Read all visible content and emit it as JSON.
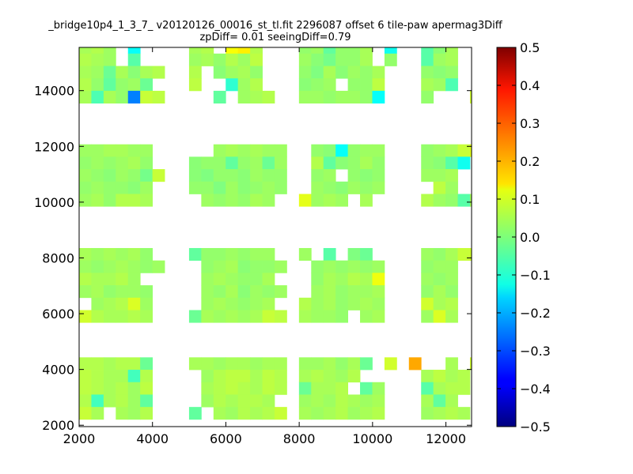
{
  "chart_data": {
    "type": "heatmap",
    "title_line1": "_bridge10p4_1_3_7_ v20120126_00016_st_tl.fit 2296087 offset 6 tile-paw apermag3Diff",
    "title_line2": "zpDiff= 0.01 seeingDiff=0.79",
    "xlim": [
      2000,
      12700
    ],
    "ylim": [
      1950,
      15550
    ],
    "x_ticks": [
      2000,
      4000,
      6000,
      8000,
      10000,
      12000
    ],
    "y_ticks": [
      2000,
      4000,
      6000,
      8000,
      10000,
      12000,
      14000
    ],
    "x_tick_labels": [
      "2000",
      "4000",
      "6000",
      "8000",
      "10000",
      "12000"
    ],
    "y_tick_labels": [
      "2000",
      "4000",
      "6000",
      "8000",
      "10000",
      "12000",
      "14000"
    ],
    "colorbar": {
      "colormap": "jet",
      "vmin": -0.5,
      "vmax": 0.5,
      "ticks": [
        -0.5,
        -0.4,
        -0.3,
        -0.2,
        -0.1,
        0.0,
        0.1,
        0.2,
        0.3,
        0.4,
        0.5
      ],
      "tick_labels": [
        "−0.5",
        "−0.4",
        "−0.3",
        "−0.2",
        "−0.1",
        "0.0",
        "0.1",
        "0.2",
        "0.3",
        "0.4",
        "0.5"
      ]
    },
    "grid": false,
    "cell_size": [
      333,
      444
    ],
    "rows": [
      {
        "y": 15330,
        "x0": 2000,
        "v": [
          0.04,
          0.05,
          0.03,
          null,
          -0.12,
          null,
          null,
          null,
          null,
          0.04,
          0.05,
          null,
          0.12,
          0.14,
          0.05,
          null,
          null,
          null,
          0.02,
          0.03,
          -0.03,
          0.02,
          0.02,
          0.04,
          null,
          -0.11,
          null,
          null,
          -0.04,
          0.01,
          0.04,
          null,
          null
        ]
      },
      {
        "y": 14885,
        "x0": 2000,
        "v": [
          0.05,
          0.04,
          0.03,
          null,
          -0.04,
          null,
          null,
          null,
          null,
          0.03,
          0.04,
          0.02,
          0.05,
          0.03,
          0.06,
          null,
          null,
          null,
          0.03,
          0.01,
          -0.01,
          0.02,
          0.02,
          0.04,
          null,
          0.02,
          null,
          null,
          -0.04,
          0.03,
          0.04,
          null,
          null
        ]
      },
      {
        "y": 14440,
        "x0": 2000,
        "v": [
          0.04,
          0.03,
          -0.02,
          0.04,
          0.01,
          0.04,
          0.05,
          null,
          null,
          0.05,
          null,
          0.01,
          0.03,
          0.04,
          0.02,
          null,
          null,
          null,
          0.02,
          0.0,
          0.04,
          0.01,
          0.03,
          0.02,
          0.04,
          null,
          null,
          null,
          0.02,
          0.01,
          0.02,
          null,
          null
        ]
      },
      {
        "y": 13995,
        "x0": 2000,
        "v": [
          0.05,
          0.02,
          -0.03,
          0.02,
          0.03,
          -0.02,
          null,
          null,
          null,
          0.06,
          null,
          null,
          -0.08,
          0.03,
          0.05,
          null,
          null,
          null,
          0.01,
          0.02,
          0.03,
          null,
          0.02,
          0.02,
          0.06,
          null,
          null,
          null,
          0.04,
          0.03,
          -0.05,
          null,
          null
        ]
      },
      {
        "y": 13550,
        "x0": 2000,
        "v": [
          0.04,
          -0.05,
          0.04,
          0.02,
          -0.25,
          0.07,
          0.06,
          null,
          null,
          null,
          null,
          -0.03,
          null,
          0.03,
          0.04,
          0.05,
          null,
          null,
          0.03,
          0.03,
          0.02,
          0.03,
          0.03,
          0.02,
          -0.12,
          null,
          null,
          null,
          0.02,
          null,
          null,
          null,
          0.08
        ]
      },
      {
        "y": 11630,
        "x0": 2000,
        "v": [
          0.03,
          0.03,
          0.04,
          0.04,
          0.03,
          0.03,
          null,
          null,
          null,
          null,
          null,
          0.03,
          0.04,
          0.03,
          0.04,
          0.03,
          0.03,
          null,
          null,
          0.02,
          0.01,
          -0.12,
          0.02,
          0.03,
          0.03,
          null,
          null,
          null,
          0.02,
          0.03,
          0.04,
          0.07,
          0.1
        ]
      },
      {
        "y": 11185,
        "x0": 2000,
        "v": [
          0.02,
          0.03,
          0.02,
          0.03,
          0.04,
          0.02,
          null,
          null,
          null,
          0.01,
          0.02,
          0.02,
          -0.03,
          0.02,
          0.03,
          -0.02,
          0.03,
          null,
          null,
          0.05,
          -0.03,
          0.01,
          0.02,
          0.04,
          0.02,
          null,
          null,
          null,
          0.02,
          0.01,
          -0.04,
          -0.11,
          null
        ]
      },
      {
        "y": 10740,
        "x0": 2000,
        "v": [
          0.03,
          0.02,
          0.01,
          0.03,
          0.02,
          -0.01,
          0.07,
          null,
          null,
          0.01,
          0.0,
          0.02,
          0.02,
          0.01,
          0.03,
          0.02,
          0.02,
          null,
          null,
          0.02,
          0.03,
          null,
          0.02,
          0.01,
          0.02,
          null,
          null,
          null,
          0.03,
          0.03,
          0.04,
          null,
          null
        ]
      },
      {
        "y": 10295,
        "x0": 2000,
        "v": [
          0.02,
          0.03,
          0.02,
          0.02,
          0.01,
          0.03,
          null,
          null,
          null,
          0.02,
          0.02,
          0.0,
          0.03,
          0.01,
          0.02,
          0.03,
          0.02,
          null,
          null,
          0.03,
          0.02,
          0.01,
          0.03,
          0.02,
          0.03,
          null,
          null,
          null,
          null,
          0.06,
          0.03,
          null,
          null
        ]
      },
      {
        "y": 9850,
        "x0": 2000,
        "v": [
          0.03,
          0.04,
          0.02,
          0.05,
          0.05,
          0.04,
          null,
          null,
          null,
          null,
          0.03,
          0.02,
          0.03,
          0.02,
          0.04,
          0.03,
          null,
          null,
          0.1,
          0.03,
          0.04,
          0.03,
          null,
          0.04,
          null,
          null,
          null,
          null,
          0.05,
          0.03,
          0.02,
          -0.04,
          0.04
        ]
      },
      {
        "y": 7910,
        "x0": 2000,
        "v": [
          0.04,
          0.03,
          0.04,
          0.03,
          0.04,
          0.02,
          null,
          null,
          null,
          -0.03,
          0.02,
          0.02,
          0.03,
          0.02,
          0.03,
          0.03,
          null,
          null,
          0.03,
          null,
          -0.04,
          null,
          0.0,
          -0.02,
          null,
          null,
          null,
          null,
          0.03,
          0.02,
          0.04,
          0.07,
          0.08
        ]
      },
      {
        "y": 7465,
        "x0": 2000,
        "v": [
          0.03,
          0.02,
          0.03,
          0.04,
          0.03,
          0.02,
          0.03,
          null,
          null,
          null,
          0.02,
          0.03,
          0.04,
          0.01,
          0.02,
          0.02,
          0.03,
          null,
          null,
          0.02,
          0.03,
          0.02,
          0.03,
          0.02,
          0.03,
          null,
          null,
          null,
          0.02,
          0.03,
          0.03,
          null,
          null
        ]
      },
      {
        "y": 7020,
        "x0": 2000,
        "v": [
          0.05,
          0.04,
          0.04,
          0.05,
          0.03,
          null,
          null,
          null,
          null,
          null,
          0.03,
          0.04,
          0.03,
          0.02,
          0.02,
          0.04,
          null,
          null,
          null,
          0.02,
          0.04,
          0.03,
          0.05,
          0.04,
          0.11,
          null,
          null,
          null,
          0.03,
          0.02,
          0.03,
          null,
          null
        ]
      },
      {
        "y": 6575,
        "x0": 2000,
        "v": [
          0.03,
          0.04,
          0.02,
          0.03,
          0.03,
          0.02,
          null,
          null,
          null,
          null,
          0.03,
          0.02,
          0.04,
          0.01,
          0.03,
          0.02,
          0.03,
          null,
          null,
          0.03,
          0.04,
          0.02,
          0.03,
          0.03,
          0.04,
          null,
          null,
          null,
          0.02,
          0.04,
          0.02,
          null,
          null
        ]
      },
      {
        "y": 6130,
        "x0": 2000,
        "v": [
          null,
          0.03,
          0.04,
          0.05,
          0.09,
          0.03,
          null,
          null,
          null,
          null,
          0.03,
          0.04,
          0.03,
          0.02,
          0.03,
          0.04,
          null,
          null,
          0.05,
          0.03,
          0.04,
          0.02,
          0.03,
          0.04,
          0.03,
          null,
          null,
          null,
          0.08,
          0.04,
          0.05,
          null,
          null
        ]
      },
      {
        "y": 5685,
        "x0": 2000,
        "v": [
          0.08,
          0.05,
          0.04,
          0.04,
          0.05,
          0.04,
          null,
          null,
          null,
          -0.02,
          0.04,
          0.03,
          0.04,
          0.03,
          0.04,
          0.07,
          0.06,
          null,
          0.04,
          0.03,
          0.03,
          0.02,
          null,
          0.03,
          0.04,
          null,
          null,
          null,
          0.03,
          0.09,
          0.04,
          null,
          null
        ]
      },
      {
        "y": 3990,
        "x0": 2000,
        "v": [
          0.05,
          0.05,
          0.04,
          0.05,
          0.05,
          -0.02,
          null,
          null,
          null,
          0.04,
          0.04,
          0.03,
          0.04,
          0.04,
          0.03,
          0.04,
          0.04,
          null,
          0.03,
          0.03,
          0.04,
          0.02,
          0.04,
          -0.02,
          null,
          0.08,
          null,
          0.21,
          null,
          null,
          0.04,
          null,
          0.08
        ]
      },
      {
        "y": 3545,
        "x0": 2000,
        "v": [
          0.06,
          0.05,
          0.04,
          0.04,
          -0.06,
          0.05,
          null,
          null,
          null,
          null,
          0.03,
          0.05,
          0.06,
          0.06,
          0.04,
          0.06,
          0.05,
          null,
          0.04,
          0.05,
          0.04,
          0.03,
          0.05,
          null,
          null,
          null,
          null,
          null,
          0.04,
          0.06,
          0.04,
          0.05,
          null
        ]
      },
      {
        "y": 3100,
        "x0": 2000,
        "v": [
          0.06,
          0.05,
          0.04,
          0.05,
          0.03,
          0.06,
          null,
          null,
          null,
          null,
          0.04,
          0.05,
          0.06,
          0.05,
          0.04,
          0.06,
          0.05,
          null,
          -0.02,
          0.04,
          0.04,
          0.05,
          null,
          -0.03,
          0.03,
          null,
          null,
          null,
          -0.04,
          0.04,
          0.05,
          0.05,
          null
        ]
      },
      {
        "y": 2655,
        "x0": 2000,
        "v": [
          0.05,
          -0.06,
          0.04,
          0.05,
          0.03,
          -0.03,
          null,
          null,
          null,
          null,
          0.03,
          0.05,
          0.04,
          0.05,
          0.05,
          0.04,
          null,
          null,
          0.03,
          0.04,
          0.03,
          0.05,
          0.04,
          0.03,
          0.04,
          null,
          null,
          null,
          0.04,
          -0.03,
          0.04,
          null,
          null
        ]
      },
      {
        "y": 2210,
        "x0": 2000,
        "v": [
          0.07,
          0.04,
          null,
          0.04,
          0.03,
          0.05,
          null,
          null,
          null,
          -0.03,
          null,
          0.04,
          0.03,
          0.05,
          0.04,
          0.05,
          0.07,
          null,
          0.04,
          0.03,
          0.04,
          0.05,
          0.03,
          0.04,
          0.05,
          null,
          null,
          null,
          0.03,
          0.04,
          0.05,
          0.04,
          null
        ]
      }
    ]
  }
}
